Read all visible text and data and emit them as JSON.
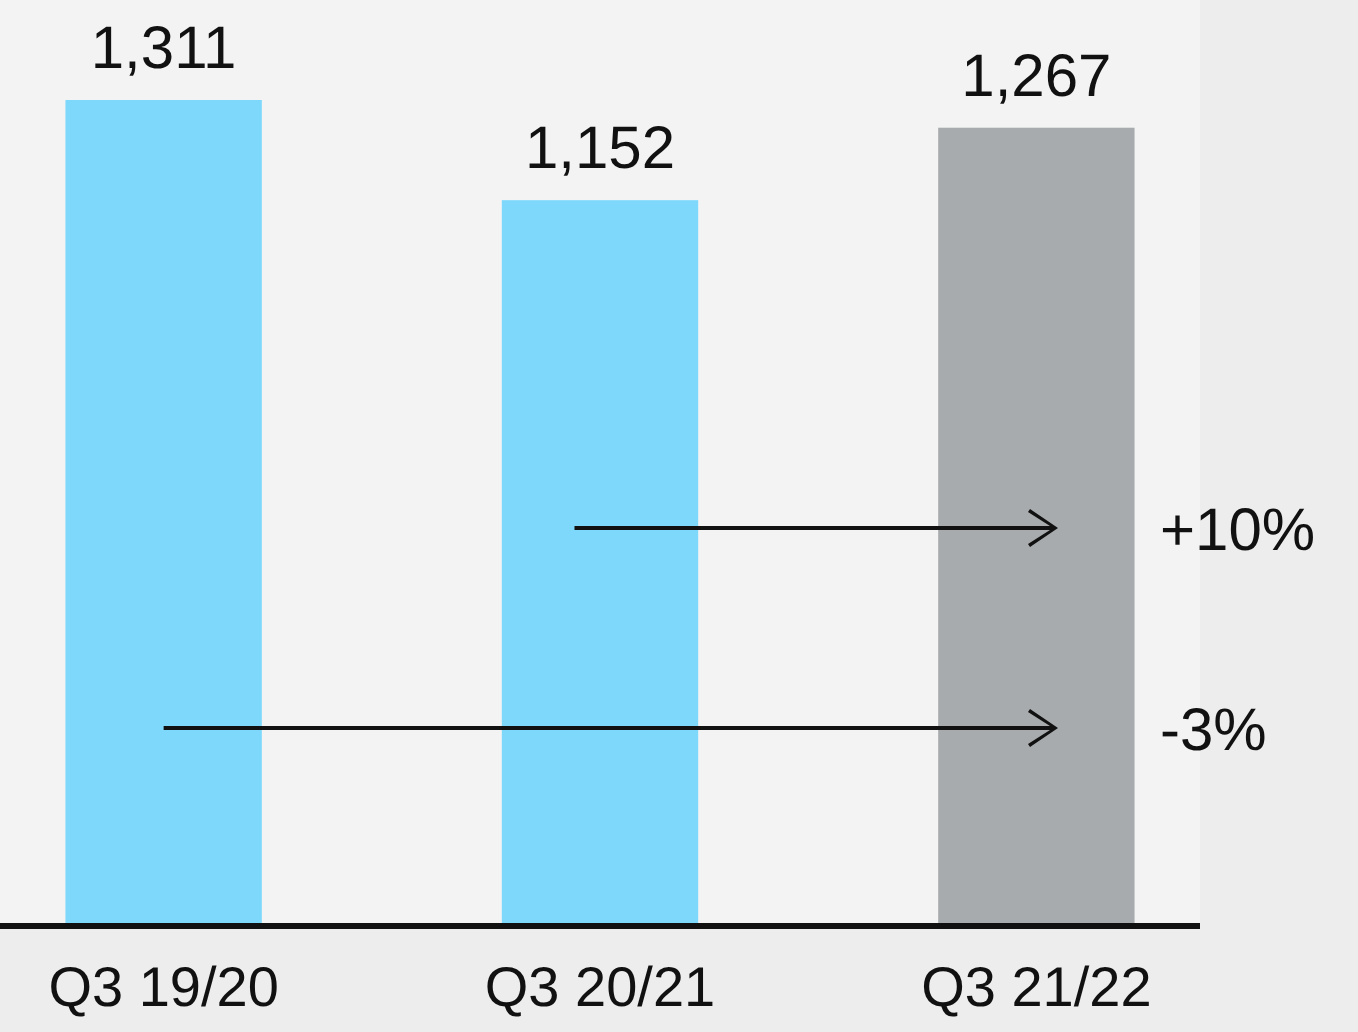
{
  "chart_data": {
    "type": "bar",
    "categories": [
      "Q3 19/20",
      "Q3 20/21",
      "Q3 21/22"
    ],
    "values": [
      1311,
      1152,
      1267
    ],
    "colors": [
      "#7dd8fb",
      "#7dd8fb",
      "#a7abad"
    ],
    "value_labels": [
      "1,311",
      "1,152",
      "1,267"
    ],
    "tick_labels": "x",
    "annotations": [
      "+10%",
      "-3%"
    ]
  }
}
